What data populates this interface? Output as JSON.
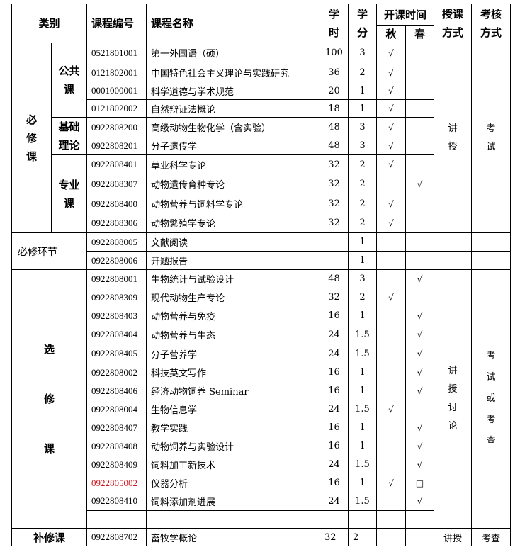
{
  "header": {
    "category": "类别",
    "code": "课程编号",
    "name": "课程名称",
    "hours": "学时",
    "credits": "学分",
    "term": "开课时间",
    "autumn": "秋",
    "spring": "春",
    "teaching": "授课方式",
    "assessment": "考核方式"
  },
  "groups": {
    "required": "必修课",
    "public": "公共课",
    "basic": "基础理论",
    "major": "专业课",
    "required_links": "必修环节",
    "elective": "选修课",
    "remedial": "补修课",
    "teaching_lecture": "讲授",
    "assessment_exam": "考试",
    "teaching_elective": "讲授讨论",
    "assessment_elective": "考试或考查",
    "teaching_remedial": "讲授",
    "assessment_remedial": "考查"
  },
  "check_mark": "√",
  "rows": [
    {
      "code": "0521801001",
      "name": "第一外国语（硕）",
      "hours": "100",
      "credits": "3",
      "autumn": "√",
      "spring": ""
    },
    {
      "code": "0121802001",
      "name": "中国特色社会主义理论与实践研究",
      "hours": "36",
      "credits": "2",
      "autumn": "√",
      "spring": ""
    },
    {
      "code": "0001000001",
      "name": "科学道德与学术规范",
      "hours": "20",
      "credits": "1",
      "autumn": "√",
      "spring": ""
    },
    {
      "code": "0121802002",
      "name": "自然辩证法概论",
      "hours": "18",
      "credits": "1",
      "autumn": "√",
      "spring": ""
    },
    {
      "code": "0922808200",
      "name": "高级动物生物化学（含实验）",
      "hours": "48",
      "credits": "3",
      "autumn": "√",
      "spring": ""
    },
    {
      "code": "0922808201",
      "name": "分子遗传学",
      "hours": "48",
      "credits": "3",
      "autumn": "√",
      "spring": ""
    },
    {
      "code": "0922808401",
      "name": "草业科学专论",
      "hours": "32",
      "credits": "2",
      "autumn": "√",
      "spring": ""
    },
    {
      "code": "0922808307",
      "name": "动物遗传育种专论",
      "hours": "32",
      "credits": "2",
      "autumn": "",
      "spring": "√"
    },
    {
      "code": "0922808400",
      "name": "动物营养与饲料学专论",
      "hours": "32",
      "credits": "2",
      "autumn": "√",
      "spring": ""
    },
    {
      "code": "0922808306",
      "name": "动物繁殖学专论",
      "hours": "32",
      "credits": "2",
      "autumn": "√",
      "spring": ""
    },
    {
      "code": "0922808005",
      "name": "文献阅读",
      "hours": "",
      "credits": "1",
      "autumn": "",
      "spring": ""
    },
    {
      "code": "0922808006",
      "name": "开题报告",
      "hours": "",
      "credits": "1",
      "autumn": "",
      "spring": ""
    },
    {
      "code": "0922808001",
      "name": "生物统计与试验设计",
      "hours": "48",
      "credits": "3",
      "autumn": "",
      "spring": "√"
    },
    {
      "code": "0922808309",
      "name": "现代动物生产专论",
      "hours": "32",
      "credits": "2",
      "autumn": "√",
      "spring": ""
    },
    {
      "code": "0922808403",
      "name": "动物营养与免疫",
      "hours": "16",
      "credits": "1",
      "autumn": "",
      "spring": "√"
    },
    {
      "code": "0922808404",
      "name": "动物营养与生态",
      "hours": "24",
      "credits": "1.5",
      "autumn": "",
      "spring": "√"
    },
    {
      "code": "0922808405",
      "name": "分子营养学",
      "hours": "24",
      "credits": "1.5",
      "autumn": "",
      "spring": "√"
    },
    {
      "code": "0922808002",
      "name": "科技英文写作",
      "hours": "16",
      "credits": "1",
      "autumn": "",
      "spring": "√"
    },
    {
      "code": "0922808406",
      "name": "经济动物饲养 Seminar",
      "hours": "16",
      "credits": "1",
      "autumn": "",
      "spring": "√"
    },
    {
      "code": "0922808004",
      "name": "生物信息学",
      "hours": "24",
      "credits": "1.5",
      "autumn": "√",
      "spring": ""
    },
    {
      "code": "0922808407",
      "name": "教学实践",
      "hours": "16",
      "credits": "1",
      "autumn": "",
      "spring": "√"
    },
    {
      "code": "0922808408",
      "name": "动物饲养与实验设计",
      "hours": "16",
      "credits": "1",
      "autumn": "",
      "spring": "√"
    },
    {
      "code": "0922808409",
      "name": "饲料加工新技术",
      "hours": "24",
      "credits": "1.5",
      "autumn": "",
      "spring": "√"
    },
    {
      "code": "0922805002",
      "name": "仪器分析",
      "hours": "16",
      "credits": "1",
      "autumn": "√",
      "spring": "□",
      "code_color": "#d0141c"
    },
    {
      "code": "0922808410",
      "name": "饲料添加剂进展",
      "hours": "24",
      "credits": "1.5",
      "autumn": "",
      "spring": "√"
    },
    {
      "code": "",
      "name": "",
      "hours": "",
      "credits": "",
      "autumn": "",
      "spring": ""
    },
    {
      "code": "0922808702",
      "name": "畜牧学概论",
      "hours": "32",
      "credits": "2",
      "autumn": "",
      "spring": ""
    }
  ]
}
